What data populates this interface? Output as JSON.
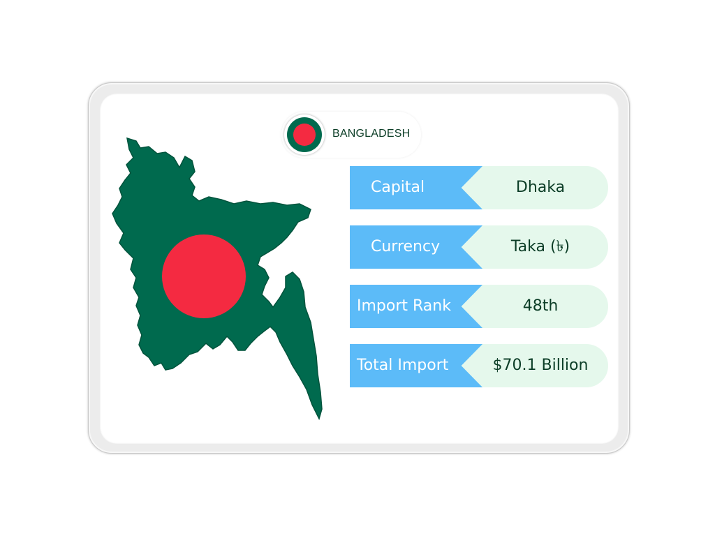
{
  "country": {
    "name": "BANGLADESH",
    "flag_icon": "bangladesh-flag-icon",
    "colors": {
      "green": "#006a4e",
      "red": "#f42a41"
    }
  },
  "map_icon": "bangladesh-map",
  "facts": [
    {
      "label": "Capital",
      "value": "Dhaka"
    },
    {
      "label": "Currency",
      "value": "Taka (৳)"
    },
    {
      "label": "Import Rank",
      "value": "48th"
    },
    {
      "label": "Total Import",
      "value": "$70.1 Billion"
    }
  ],
  "colors": {
    "label_bg": "#5cbbf8",
    "value_bg": "#e5f8ec",
    "text_dark": "#0b3d26"
  }
}
